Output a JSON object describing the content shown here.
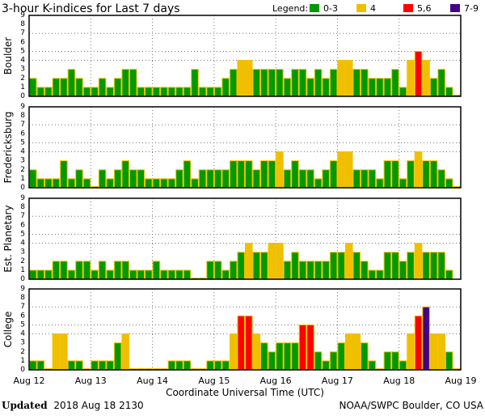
{
  "chart_data": {
    "type": "bar",
    "title": "3-hour K-indices for Last 7 days",
    "legend": {
      "label": "Legend:",
      "placement": "top-right",
      "entries": [
        {
          "label": "0-3",
          "color": "#009900"
        },
        {
          "label": "4",
          "color": "#f0c000"
        },
        {
          "label": "5,6",
          "color": "#ff0000"
        },
        {
          "label": "7-9",
          "color": "#440088"
        }
      ]
    },
    "bar_outline_color": "#f0c000",
    "xlabel": "Coordinate Universal Time (UTC)",
    "x_ticks": [
      "Aug 12",
      "Aug 13",
      "Aug 14",
      "Aug 15",
      "Aug 16",
      "Aug 17",
      "Aug 18",
      "Aug 19"
    ],
    "interval_hours": 3,
    "ylim": [
      0,
      9
    ],
    "y_ticks": [
      "0",
      "1",
      "2",
      "3",
      "4",
      "5",
      "6",
      "7",
      "8",
      "9"
    ],
    "grid": {
      "horizontal_dotted_at": [
        4,
        5,
        7
      ],
      "vertical_dotted_at_day_boundaries": true
    },
    "panels": [
      {
        "name": "Boulder",
        "values": [
          2,
          1,
          1,
          2,
          2,
          3,
          2,
          1,
          1,
          2,
          1,
          2,
          3,
          3,
          1,
          1,
          1,
          1,
          1,
          1,
          1,
          3,
          1,
          1,
          1,
          2,
          3,
          4,
          4,
          3,
          3,
          3,
          3,
          2,
          3,
          3,
          2,
          3,
          2,
          3,
          4,
          4,
          3,
          3,
          2,
          2,
          2,
          3,
          1,
          4,
          5,
          4,
          2,
          3,
          1,
          0
        ]
      },
      {
        "name": "Fredericksburg",
        "values": [
          2,
          1,
          1,
          1,
          3,
          1,
          2,
          1,
          0,
          2,
          1,
          2,
          3,
          2,
          2,
          1,
          1,
          1,
          1,
          2,
          3,
          1,
          2,
          2,
          2,
          2,
          3,
          3,
          3,
          2,
          3,
          3,
          4,
          2,
          3,
          2,
          2,
          1,
          2,
          3,
          4,
          4,
          2,
          2,
          2,
          1,
          3,
          3,
          1,
          3,
          4,
          3,
          3,
          2,
          1,
          0
        ]
      },
      {
        "name": "Est. Planetary",
        "values": [
          1,
          1,
          1,
          2,
          2,
          1,
          2,
          2,
          1,
          2,
          1,
          2,
          2,
          1,
          1,
          1,
          2,
          1,
          1,
          1,
          1,
          0,
          0,
          2,
          2,
          1,
          2,
          3,
          4,
          3,
          3,
          4,
          4,
          2,
          3,
          2,
          2,
          2,
          2,
          3,
          3,
          4,
          3,
          2,
          1,
          1,
          3,
          3,
          2,
          3,
          4,
          3,
          3,
          3,
          1,
          null
        ]
      },
      {
        "name": "College",
        "values": [
          1,
          1,
          0,
          4,
          4,
          1,
          1,
          0,
          1,
          1,
          1,
          3,
          4,
          0,
          0,
          0,
          0,
          0,
          1,
          1,
          1,
          0,
          0,
          1,
          1,
          1,
          4,
          6,
          6,
          4,
          3,
          2,
          3,
          3,
          3,
          5,
          5,
          2,
          1,
          2,
          3,
          4,
          4,
          3,
          1,
          0,
          2,
          2,
          1,
          4,
          6,
          7,
          4,
          4,
          2,
          0
        ]
      }
    ]
  },
  "footer": {
    "updated_label": "Updated",
    "updated_value": "2018 Aug 18 2130",
    "credit": "NOAA/SWPC Boulder, CO USA"
  }
}
